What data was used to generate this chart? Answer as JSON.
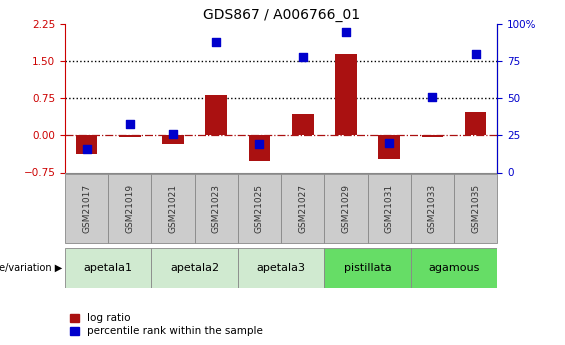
{
  "title": "GDS867 / A006766_01",
  "samples": [
    "GSM21017",
    "GSM21019",
    "GSM21021",
    "GSM21023",
    "GSM21025",
    "GSM21027",
    "GSM21029",
    "GSM21031",
    "GSM21033",
    "GSM21035"
  ],
  "log_ratio": [
    -0.38,
    -0.04,
    -0.18,
    0.82,
    -0.52,
    0.43,
    1.65,
    -0.47,
    -0.04,
    0.48
  ],
  "percentile_rank": [
    16,
    33,
    26,
    88,
    19,
    78,
    95,
    20,
    51,
    80
  ],
  "genotype_groups": [
    {
      "label": "apetala1",
      "start": 0,
      "end": 2,
      "color": "#d0ead0"
    },
    {
      "label": "apetala2",
      "start": 2,
      "end": 4,
      "color": "#d0ead0"
    },
    {
      "label": "apetala3",
      "start": 4,
      "end": 6,
      "color": "#d0ead0"
    },
    {
      "label": "pistillata",
      "start": 6,
      "end": 8,
      "color": "#66dd66"
    },
    {
      "label": "agamous",
      "start": 8,
      "end": 10,
      "color": "#66dd66"
    }
  ],
  "ylim_left": [
    -0.75,
    2.25
  ],
  "ylim_right": [
    0,
    100
  ],
  "left_yticks": [
    -0.75,
    0,
    0.75,
    1.5,
    2.25
  ],
  "right_yticks": [
    0,
    25,
    50,
    75,
    100
  ],
  "bar_color": "#aa1111",
  "dot_color": "#0000cc",
  "bar_width": 0.5,
  "dot_size": 28,
  "xlabel_color": "#333333",
  "left_axis_color": "#cc0000",
  "right_axis_color": "#0000cc",
  "legend_labels": [
    "log ratio",
    "percentile rank within the sample"
  ],
  "legend_colors": [
    "#aa1111",
    "#0000cc"
  ],
  "genotype_label": "genotype/variation",
  "sample_box_color": "#cccccc",
  "sample_box_edge": "#888888"
}
